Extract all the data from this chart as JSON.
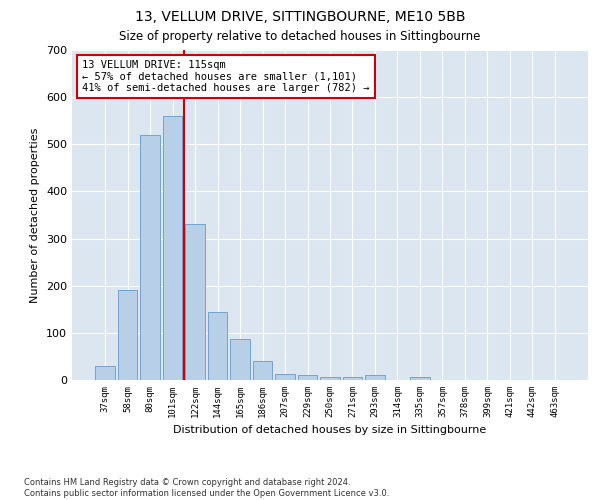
{
  "title": "13, VELLUM DRIVE, SITTINGBOURNE, ME10 5BB",
  "subtitle": "Size of property relative to detached houses in Sittingbourne",
  "xlabel": "Distribution of detached houses by size in Sittingbourne",
  "ylabel": "Number of detached properties",
  "categories": [
    "37sqm",
    "58sqm",
    "80sqm",
    "101sqm",
    "122sqm",
    "144sqm",
    "165sqm",
    "186sqm",
    "207sqm",
    "229sqm",
    "250sqm",
    "271sqm",
    "293sqm",
    "314sqm",
    "335sqm",
    "357sqm",
    "378sqm",
    "399sqm",
    "421sqm",
    "442sqm",
    "463sqm"
  ],
  "values": [
    30,
    190,
    520,
    560,
    330,
    145,
    87,
    40,
    13,
    10,
    7,
    7,
    10,
    0,
    7,
    0,
    0,
    0,
    0,
    0,
    0
  ],
  "bar_color": "#b8cfe8",
  "bar_edge_color": "#6699cc",
  "vline_x": 3.5,
  "vline_color": "#cc0000",
  "annotation_line1": "13 VELLUM DRIVE: 115sqm",
  "annotation_line2": "← 57% of detached houses are smaller (1,101)",
  "annotation_line3": "41% of semi-detached houses are larger (782) →",
  "annotation_box_color": "#cc0000",
  "ylim": [
    0,
    700
  ],
  "yticks": [
    0,
    100,
    200,
    300,
    400,
    500,
    600,
    700
  ],
  "fig_background": "#ffffff",
  "ax_background": "#dce6f0",
  "grid_color": "#ffffff",
  "footer": "Contains HM Land Registry data © Crown copyright and database right 2024.\nContains public sector information licensed under the Open Government Licence v3.0."
}
